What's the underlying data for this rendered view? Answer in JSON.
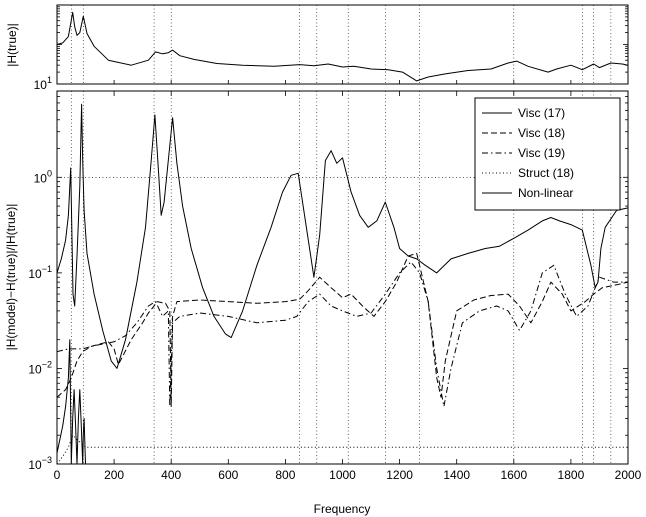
{
  "chart_data": [
    {
      "type": "line",
      "ylabel": "|H(true)|",
      "yscale": "log",
      "ylim": [
        10,
        1000
      ],
      "xlim": [
        0,
        2000
      ],
      "ytick_labels": [
        {
          "value": 10,
          "base": "10",
          "exp": "1"
        }
      ],
      "grid": true,
      "grid_x": [
        50,
        92,
        340,
        400,
        850,
        910,
        1020,
        1150,
        1270,
        1600,
        1840,
        1880,
        1940
      ],
      "grid_y": [],
      "series": [
        {
          "style": "solid",
          "color": "#000000",
          "x": [
            0,
            20,
            40,
            55,
            62,
            70,
            80,
            92,
            105,
            130,
            180,
            260,
            320,
            345,
            370,
            390,
            405,
            430,
            480,
            560,
            650,
            760,
            850,
            900,
            950,
            1000,
            1040,
            1100,
            1160,
            1210,
            1260,
            1300,
            1360,
            1440,
            1520,
            1580,
            1610,
            1650,
            1720,
            1750,
            1800,
            1840,
            1880,
            1900,
            1940,
            1980,
            2000
          ],
          "values": [
            100,
            110,
            160,
            650,
            280,
            170,
            200,
            520,
            190,
            90,
            40,
            30,
            40,
            65,
            58,
            62,
            72,
            52,
            42,
            33,
            30,
            28,
            31,
            29,
            32,
            27,
            28,
            24,
            23,
            20,
            12,
            15,
            18,
            22,
            24,
            34,
            38,
            28,
            20,
            24,
            30,
            23,
            32,
            26,
            34,
            32,
            30
          ]
        }
      ]
    },
    {
      "type": "line",
      "xlabel": "Frequency",
      "ylabel": "|H(model)−H(true)|/|H(true)|",
      "yscale": "log",
      "xlim": [
        0,
        2000
      ],
      "ylim": [
        0.001,
        8
      ],
      "xticks": [
        0,
        200,
        400,
        600,
        800,
        1000,
        1200,
        1400,
        1600,
        1800,
        2000
      ],
      "ytick_labels": [
        {
          "value": 0.001,
          "base": "10",
          "exp": "−3"
        },
        {
          "value": 0.01,
          "base": "10",
          "exp": "−2"
        },
        {
          "value": 0.1,
          "base": "10",
          "exp": "−1"
        },
        {
          "value": 1,
          "base": "10",
          "exp": "0"
        }
      ],
      "grid": true,
      "grid_x": [
        50,
        92,
        340,
        400,
        850,
        910,
        1020,
        1150,
        1270,
        1600,
        1840,
        1880,
        1940
      ],
      "grid_y": [
        1
      ],
      "legend_position": "top-right",
      "series": [
        {
          "name": "Visc (17)",
          "style": "solid",
          "color": "#000000",
          "x": [
            0,
            20,
            30,
            40,
            45,
            50,
            55,
            60,
            65,
            70,
            75,
            80,
            85,
            90,
            92,
            95,
            100,
            110,
            130
          ],
          "values": [
            0.0013,
            0.0025,
            0.004,
            0.008,
            0.02,
            0.001,
            0.003,
            0.006,
            0.0025,
            0.001,
            0.003,
            0.006,
            0.0025,
            0.001,
            0.002,
            0.003,
            0.001,
            0.001,
            0.001
          ]
        },
        {
          "name": "Visc (18)",
          "style": "dashed",
          "color": "#000000",
          "x": [
            0,
            30,
            50,
            70,
            90,
            120,
            150,
            180,
            200,
            215,
            260,
            300,
            320,
            340,
            350,
            380,
            395,
            400,
            405,
            420,
            500,
            600,
            700,
            800,
            850,
            880,
            920,
            960,
            1000,
            1030,
            1070,
            1110,
            1150,
            1190,
            1230,
            1260,
            1300,
            1330,
            1345,
            1360,
            1400,
            1460,
            1520,
            1580,
            1620,
            1660,
            1700,
            1730,
            1770,
            1800,
            1850,
            1880,
            1910,
            1960,
            2000
          ],
          "values": [
            0.005,
            0.006,
            0.008,
            0.012,
            0.015,
            0.017,
            0.018,
            0.019,
            0.016,
            0.011,
            0.02,
            0.03,
            0.038,
            0.045,
            0.05,
            0.048,
            0.04,
            0.004,
            0.035,
            0.05,
            0.052,
            0.05,
            0.048,
            0.05,
            0.053,
            0.065,
            0.09,
            0.07,
            0.055,
            0.06,
            0.045,
            0.035,
            0.05,
            0.08,
            0.15,
            0.16,
            0.05,
            0.008,
            0.005,
            0.012,
            0.04,
            0.052,
            0.058,
            0.06,
            0.045,
            0.03,
            0.05,
            0.08,
            0.06,
            0.04,
            0.05,
            0.06,
            0.07,
            0.075,
            0.08
          ]
        },
        {
          "name": "Visc (19)",
          "style": "dashdot",
          "color": "#000000",
          "x": [
            0,
            40,
            60,
            90,
            120,
            160,
            200,
            240,
            280,
            320,
            345,
            370,
            390,
            395,
            405,
            430,
            500,
            600,
            700,
            800,
            840,
            880,
            920,
            960,
            1000,
            1050,
            1100,
            1150,
            1200,
            1240,
            1270,
            1300,
            1330,
            1355,
            1380,
            1420,
            1480,
            1540,
            1580,
            1620,
            1660,
            1700,
            1740,
            1780,
            1820,
            1860,
            1900,
            1950,
            2000
          ],
          "values": [
            0.015,
            0.016,
            0.016,
            0.016,
            0.017,
            0.018,
            0.019,
            0.022,
            0.03,
            0.045,
            0.05,
            0.035,
            0.04,
            0.004,
            0.03,
            0.035,
            0.038,
            0.035,
            0.03,
            0.032,
            0.035,
            0.05,
            0.06,
            0.045,
            0.04,
            0.035,
            0.038,
            0.06,
            0.1,
            0.13,
            0.1,
            0.05,
            0.01,
            0.004,
            0.01,
            0.03,
            0.04,
            0.045,
            0.04,
            0.025,
            0.04,
            0.1,
            0.12,
            0.06,
            0.035,
            0.045,
            0.09,
            0.08,
            0.08
          ]
        },
        {
          "name": "Struct (18)",
          "style": "dotted",
          "color": "#000000",
          "x": [
            0,
            20,
            40,
            55,
            70,
            90,
            100,
            120,
            160,
            200,
            220,
            260,
            300,
            340,
            380,
            420,
            460,
            520,
            600,
            700,
            800,
            880,
            900,
            940,
            1000,
            1080,
            1160,
            1200,
            1240,
            1280,
            1320,
            1360,
            1400,
            1440,
            1500,
            1560,
            1600,
            1640,
            1700,
            1720,
            1760,
            1800,
            1840,
            1880,
            1920,
            1960,
            2000
          ],
          "values": [
            0.001,
            0.0012,
            0.0015,
            0.002,
            0.0018,
            0.0016,
            0.0015,
            0.0015,
            0.0015,
            0.0015,
            0.0015,
            0.0015,
            0.0015,
            0.0015,
            0.0015,
            0.0015,
            0.0015,
            0.0015,
            0.0015,
            0.0015,
            0.0015,
            0.0015,
            0.0015,
            0.0015,
            0.0015,
            0.0015,
            0.0015,
            0.0015,
            0.0015,
            0.0015,
            0.0015,
            0.0015,
            0.0015,
            0.0015,
            0.0015,
            0.0015,
            0.0015,
            0.0015,
            0.0015,
            0.0015,
            0.0015,
            0.0015,
            0.0015,
            0.0015,
            0.0015,
            0.0015,
            0.0015
          ]
        },
        {
          "name": "Non-linear",
          "style": "solid",
          "color": "#000000",
          "x": [
            0,
            15,
            30,
            40,
            48,
            52,
            56,
            62,
            70,
            80,
            86,
            90,
            95,
            105,
            130,
            160,
            190,
            210,
            240,
            280,
            310,
            330,
            343,
            355,
            365,
            375,
            390,
            405,
            420,
            440,
            470,
            510,
            550,
            590,
            610,
            650,
            700,
            750,
            790,
            820,
            845,
            870,
            900,
            920,
            940,
            960,
            980,
            1000,
            1030,
            1060,
            1090,
            1120,
            1150,
            1180,
            1200,
            1230,
            1260,
            1290,
            1330,
            1380,
            1440,
            1500,
            1550,
            1600,
            1650,
            1700,
            1730,
            1760,
            1800,
            1840,
            1870,
            1885,
            1895,
            1905,
            1920,
            1960,
            2000
          ],
          "values": [
            0.1,
            0.14,
            0.22,
            0.4,
            1.25,
            0.3,
            0.06,
            0.045,
            0.15,
            0.8,
            5.8,
            1.5,
            0.45,
            0.16,
            0.06,
            0.025,
            0.012,
            0.01,
            0.02,
            0.08,
            0.3,
            1.5,
            4.5,
            1.2,
            0.4,
            0.55,
            1.5,
            4.2,
            1.4,
            0.5,
            0.18,
            0.07,
            0.035,
            0.023,
            0.021,
            0.04,
            0.12,
            0.3,
            0.7,
            1.05,
            1.1,
            0.35,
            0.09,
            0.25,
            1.5,
            1.9,
            1.4,
            1.6,
            0.7,
            0.4,
            0.3,
            0.35,
            0.55,
            0.3,
            0.18,
            0.15,
            0.14,
            0.12,
            0.1,
            0.14,
            0.16,
            0.18,
            0.19,
            0.23,
            0.28,
            0.35,
            0.38,
            0.35,
            0.32,
            0.28,
            0.12,
            0.07,
            0.08,
            0.18,
            0.3,
            0.45,
            0.48
          ]
        }
      ]
    }
  ]
}
